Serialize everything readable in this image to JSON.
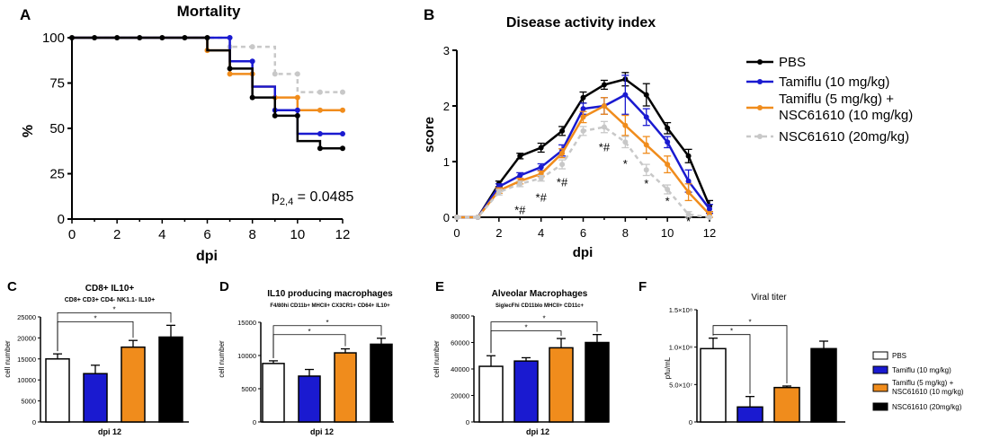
{
  "colors": {
    "pbs": "#000000",
    "tamiflu10": "#1a1ad0",
    "tamiflu5_nsc": "#f08c1c",
    "nsc20": "#c8c8c8"
  },
  "chart_data": [
    {
      "id": "A",
      "panel_label": "A",
      "type": "line",
      "title": "Mortality",
      "xlabel": "dpi",
      "ylabel": "%",
      "xlim": [
        0,
        12
      ],
      "ylim": [
        0,
        100
      ],
      "xticks": [
        0,
        2,
        4,
        6,
        8,
        10,
        12
      ],
      "yticks": [
        0,
        25,
        50,
        75,
        100
      ],
      "annotation": {
        "text": "p",
        "sub": "2,4",
        "rest": " = 0.0485"
      },
      "series": [
        {
          "name": "NSC61610 (20mg/kg)",
          "color_key": "nsc20",
          "dashed": true,
          "steps": [
            [
              0,
              100
            ],
            [
              7,
              100
            ],
            [
              7,
              95
            ],
            [
              9,
              95
            ],
            [
              9,
              80
            ],
            [
              10,
              80
            ],
            [
              10,
              70
            ],
            [
              12,
              70
            ]
          ],
          "points": [
            [
              7,
              95
            ],
            [
              8,
              95
            ],
            [
              9,
              80
            ],
            [
              10,
              80
            ],
            [
              11,
              70
            ],
            [
              12,
              70
            ]
          ]
        },
        {
          "name": "Tamiflu (5 mg/kg) + NSC61610 (10 mg/kg)",
          "color_key": "tamiflu5_nsc",
          "dashed": false,
          "steps": [
            [
              0,
              100
            ],
            [
              6,
              100
            ],
            [
              6,
              93
            ],
            [
              7,
              93
            ],
            [
              7,
              80
            ],
            [
              8,
              80
            ],
            [
              8,
              73
            ],
            [
              9,
              73
            ],
            [
              9,
              67
            ],
            [
              10,
              67
            ],
            [
              10,
              60
            ],
            [
              12,
              60
            ]
          ],
          "points": [
            [
              6,
              93
            ],
            [
              7,
              80
            ],
            [
              8,
              80
            ],
            [
              9,
              67
            ],
            [
              10,
              67
            ],
            [
              11,
              60
            ],
            [
              12,
              60
            ]
          ]
        },
        {
          "name": "Tamiflu (10 mg/kg)",
          "color_key": "tamiflu10",
          "dashed": false,
          "steps": [
            [
              0,
              100
            ],
            [
              7,
              100
            ],
            [
              7,
              87
            ],
            [
              8,
              87
            ],
            [
              8,
              73
            ],
            [
              9,
              73
            ],
            [
              9,
              60
            ],
            [
              10,
              60
            ],
            [
              10,
              47
            ],
            [
              12,
              47
            ]
          ],
          "points": [
            [
              7,
              100
            ],
            [
              8,
              87
            ],
            [
              9,
              60
            ],
            [
              10,
              60
            ],
            [
              11,
              47
            ],
            [
              12,
              47
            ]
          ]
        },
        {
          "name": "PBS",
          "color_key": "pbs",
          "dashed": false,
          "steps": [
            [
              0,
              100
            ],
            [
              6,
              100
            ],
            [
              6,
              93
            ],
            [
              7,
              93
            ],
            [
              7,
              83
            ],
            [
              8,
              83
            ],
            [
              8,
              67
            ],
            [
              9,
              67
            ],
            [
              9,
              57
            ],
            [
              10,
              57
            ],
            [
              10,
              43
            ],
            [
              11,
              43
            ],
            [
              11,
              39
            ],
            [
              12,
              39
            ]
          ],
          "points": [
            [
              0,
              100
            ],
            [
              1,
              100
            ],
            [
              2,
              100
            ],
            [
              3,
              100
            ],
            [
              4,
              100
            ],
            [
              5,
              100
            ],
            [
              6,
              100
            ],
            [
              7,
              83
            ],
            [
              8,
              67
            ],
            [
              9,
              57
            ],
            [
              10,
              57
            ],
            [
              11,
              39
            ],
            [
              12,
              39
            ]
          ]
        }
      ]
    },
    {
      "id": "B",
      "panel_label": "B",
      "type": "line",
      "title": "Disease activity index",
      "xlabel": "dpi",
      "ylabel": "score",
      "xlim": [
        0,
        12
      ],
      "ylim": [
        0,
        3
      ],
      "xticks": [
        0,
        2,
        4,
        6,
        8,
        10,
        12
      ],
      "yticks": [
        0,
        1,
        2,
        3
      ],
      "x": [
        0,
        1,
        2,
        3,
        4,
        5,
        6,
        7,
        8,
        9,
        10,
        11,
        12
      ],
      "series": [
        {
          "name": "PBS",
          "color_key": "pbs",
          "dashed": false,
          "values": [
            0,
            0,
            0.6,
            1.1,
            1.25,
            1.55,
            2.15,
            2.38,
            2.48,
            2.2,
            1.6,
            1.1,
            0.2
          ],
          "errors": [
            0,
            0,
            0.05,
            0.05,
            0.08,
            0.08,
            0.1,
            0.08,
            0.12,
            0.2,
            0.1,
            0.12,
            0.1
          ]
        },
        {
          "name": "Tamiflu (10 mg/kg)",
          "color_key": "tamiflu10",
          "dashed": false,
          "values": [
            0,
            0,
            0.55,
            0.75,
            0.9,
            1.2,
            1.95,
            2.0,
            2.2,
            1.8,
            1.35,
            0.65,
            0.15
          ],
          "errors": [
            0,
            0,
            0.05,
            0.05,
            0.06,
            0.1,
            0.1,
            0.15,
            0.35,
            0.15,
            0.1,
            0.2,
            0.08
          ]
        },
        {
          "name": "Tamiflu (5 mg/kg) +\nNSC61610 (10 mg/kg)",
          "color_key": "tamiflu5_nsc",
          "dashed": false,
          "values": [
            0,
            0,
            0.48,
            0.65,
            0.78,
            1.15,
            1.8,
            2.0,
            1.65,
            1.3,
            0.95,
            0.45,
            0.05
          ],
          "errors": [
            0,
            0,
            0.05,
            0.05,
            0.05,
            0.08,
            0.1,
            0.15,
            0.18,
            0.15,
            0.15,
            0.15,
            0.05
          ]
        },
        {
          "name": "NSC61610 (20mg/kg)",
          "color_key": "nsc20",
          "dashed": true,
          "values": [
            0,
            0,
            0.45,
            0.6,
            0.7,
            0.95,
            1.55,
            1.62,
            1.35,
            0.85,
            0.5,
            0.05,
            0.0
          ],
          "errors": [
            0,
            0,
            0.05,
            0.05,
            0.05,
            0.08,
            0.08,
            0.1,
            0.1,
            0.1,
            0.08,
            0.05,
            0.0
          ]
        }
      ],
      "significance": [
        {
          "x": 3,
          "y": 0.12,
          "text": "*#"
        },
        {
          "x": 4,
          "y": 0.35,
          "text": "*#"
        },
        {
          "x": 5,
          "y": 0.62,
          "text": "*#"
        },
        {
          "x": 7,
          "y": 1.25,
          "text": "*#"
        },
        {
          "x": 8,
          "y": 0.95,
          "text": "*"
        },
        {
          "x": 9,
          "y": 0.6,
          "text": "*"
        },
        {
          "x": 10,
          "y": 0.28,
          "text": "*"
        },
        {
          "x": 11,
          "y": -0.08,
          "text": "*"
        }
      ]
    },
    {
      "id": "C",
      "panel_label": "C",
      "type": "bar",
      "title": "CD8+ IL10+",
      "subtitle": "CD8+ CD3+ CD4- NK1.1- IL10+",
      "xlabel": "dpi 12",
      "ylabel": "cell number",
      "ylim": [
        0,
        25000
      ],
      "yticks": [
        0,
        5000,
        10000,
        15000,
        20000,
        25000
      ],
      "ytick_labels": [
        "0",
        "5000",
        "10000",
        "15000",
        "20000",
        "25000"
      ],
      "categories": [
        "PBS",
        "Tamiflu (10 mg/kg)",
        "Tamiflu (5 mg/kg) + NSC61610 (10 mg/kg)",
        "NSC61610 (20mg/kg)"
      ],
      "values": [
        15000,
        11500,
        17800,
        20200
      ],
      "errors": [
        1200,
        2000,
        1600,
        2800
      ],
      "brackets": [
        {
          "from": 0,
          "to": 2,
          "text": "*"
        },
        {
          "from": 0,
          "to": 3,
          "text": "*"
        }
      ]
    },
    {
      "id": "D",
      "panel_label": "D",
      "type": "bar",
      "title": "IL10 producing macrophages",
      "subtitle": "F4/80hi CD11b+ MHCII+ CX3CR1+ CD64+ IL10+",
      "xlabel": "dpi 12",
      "ylabel": "cell number",
      "ylim": [
        0,
        15000
      ],
      "yticks": [
        0,
        5000,
        10000,
        15000
      ],
      "ytick_labels": [
        "0",
        "5000",
        "10000",
        "15000"
      ],
      "categories": [
        "PBS",
        "Tamiflu (10 mg/kg)",
        "Tamiflu (5 mg/kg) + NSC61610 (10 mg/kg)",
        "NSC61610 (20mg/kg)"
      ],
      "values": [
        8800,
        6900,
        10400,
        11700
      ],
      "errors": [
        400,
        1000,
        600,
        900
      ],
      "brackets": [
        {
          "from": 0,
          "to": 2,
          "text": "*"
        },
        {
          "from": 0,
          "to": 3,
          "text": "*"
        }
      ]
    },
    {
      "id": "E",
      "panel_label": "E",
      "type": "bar",
      "title": "Alveolar Macrophages",
      "subtitle": "SiglecFhi CD11blo MHCII+ CD11c+",
      "xlabel": "dpi 12",
      "ylabel": "cell number",
      "ylim": [
        0,
        80000
      ],
      "yticks": [
        0,
        20000,
        40000,
        60000,
        80000
      ],
      "ytick_labels": [
        "0",
        "20000",
        "40000",
        "60000",
        "80000"
      ],
      "categories": [
        "PBS",
        "Tamiflu (10 mg/kg)",
        "Tamiflu (5 mg/kg) + NSC61610 (10 mg/kg)",
        "NSC61610 (20mg/kg)"
      ],
      "values": [
        42000,
        46000,
        56000,
        60000
      ],
      "errors": [
        8000,
        2500,
        7000,
        6000
      ],
      "brackets": [
        {
          "from": 0,
          "to": 2,
          "text": "*"
        },
        {
          "from": 0,
          "to": 3,
          "text": "*"
        }
      ]
    },
    {
      "id": "F",
      "panel_label": "F",
      "type": "bar",
      "title": "Viral titer",
      "subtitle": "",
      "xlabel": "",
      "ylabel": "pfu/mL",
      "ylim": [
        0,
        150000000
      ],
      "yticks": [
        0,
        50000000,
        100000000,
        150000000
      ],
      "ytick_labels": [
        "0",
        "5.0×10⁷",
        "1.0×10⁸",
        "1.5×10⁸"
      ],
      "categories": [
        "PBS",
        "Tamiflu (10 mg/kg)",
        "Tamiflu (5 mg/kg) + NSC61610 (10 mg/kg)",
        "NSC61610 (20mg/kg)"
      ],
      "values": [
        98000000,
        20000000,
        46000000,
        98000000
      ],
      "errors": [
        14000000,
        14000000,
        2000000,
        10000000
      ],
      "brackets": [
        {
          "from": 0,
          "to": 1,
          "text": "*"
        },
        {
          "from": 0,
          "to": 2,
          "text": "*"
        }
      ]
    }
  ],
  "legend_top": {
    "entries": [
      {
        "label": "PBS",
        "color_key": "pbs",
        "dashed": false
      },
      {
        "label": "Tamiflu (10 mg/kg)",
        "color_key": "tamiflu10",
        "dashed": false
      },
      {
        "label": "Tamiflu (5 mg/kg) +",
        "label2": "NSC61610 (10 mg/kg)",
        "color_key": "tamiflu5_nsc",
        "dashed": false
      },
      {
        "label": "NSC61610 (20mg/kg)",
        "color_key": "nsc20",
        "dashed": true
      }
    ]
  },
  "legend_bottom": {
    "entries": [
      {
        "label": "PBS",
        "fill": "#ffffff"
      },
      {
        "label": "Tamiflu (10 mg/kg)",
        "fill": "#1a1ad0"
      },
      {
        "label": "Tamiflu (5 mg/kg) +",
        "label2": "NSC61610 (10 mg/kg)",
        "fill": "#f08c1c"
      },
      {
        "label": "NSC61610 (20mg/kg)",
        "fill": "#000000"
      }
    ]
  }
}
